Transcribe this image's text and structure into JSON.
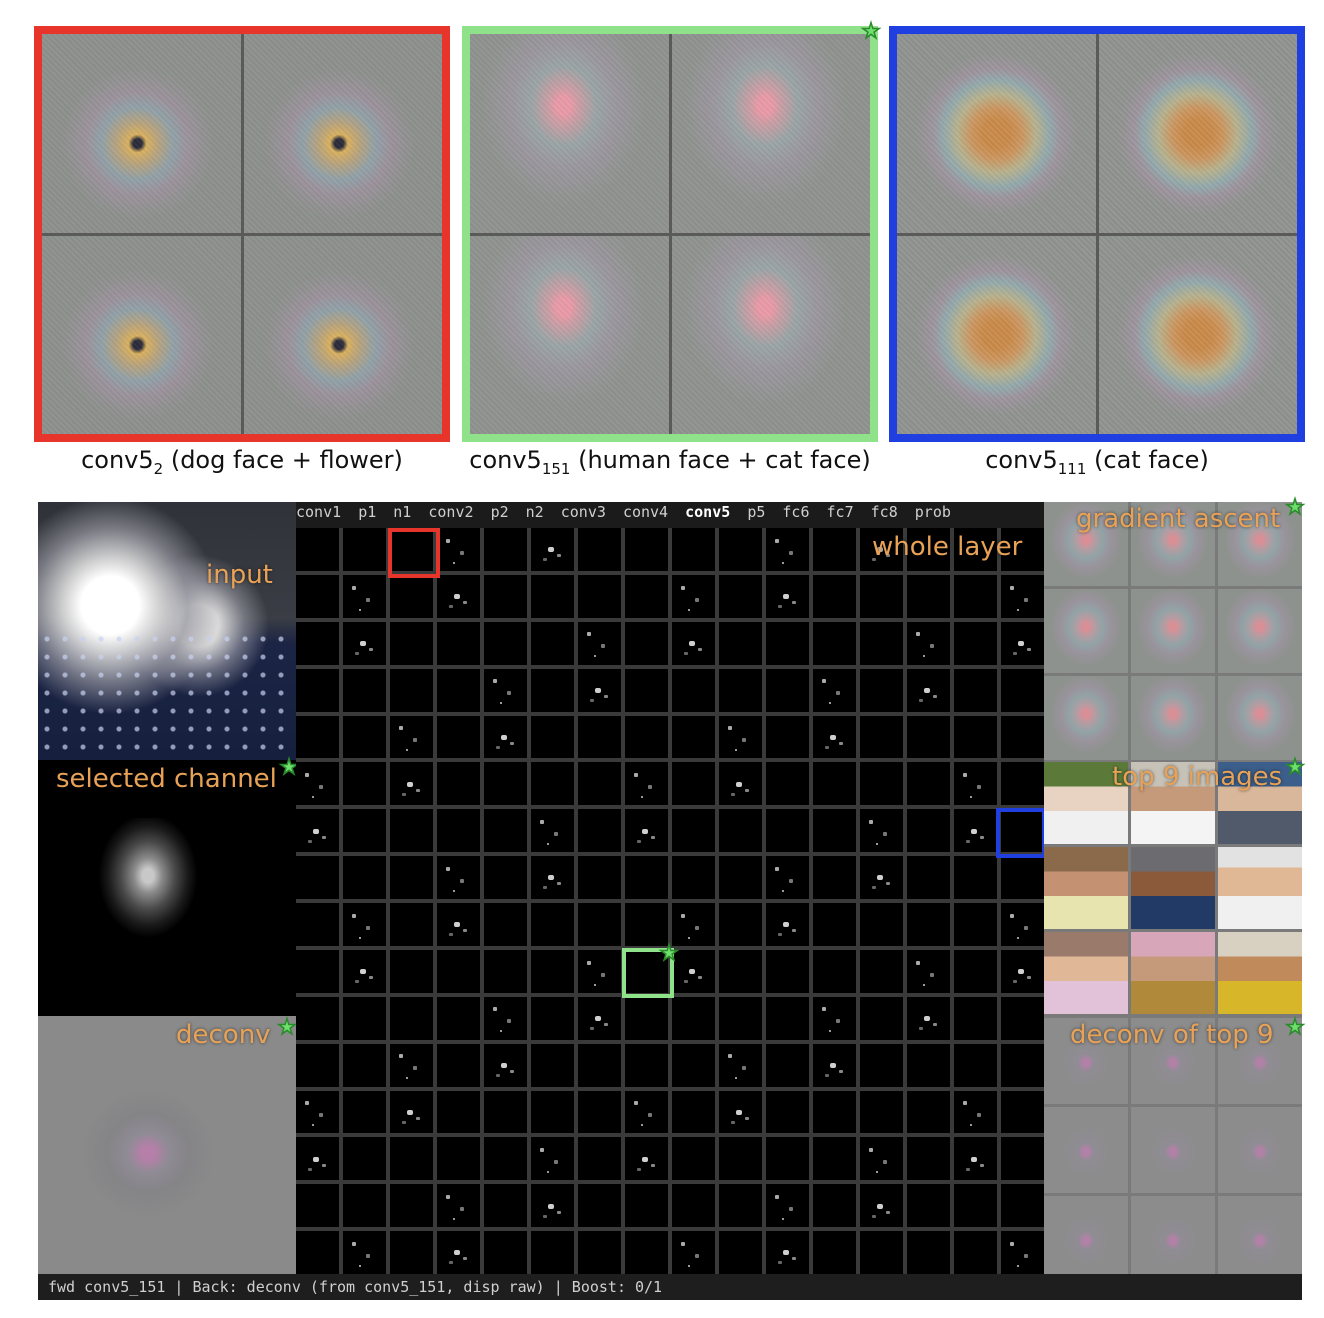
{
  "captions": {
    "panel1": {
      "base": "conv5",
      "sub": "2",
      "rest": " (dog face + flower)"
    },
    "panel2": {
      "base": "conv5",
      "sub": "151",
      "rest": " (human face + cat face)"
    },
    "panel3": {
      "base": "conv5",
      "sub": "111",
      "rest": " (cat face)"
    }
  },
  "colors": {
    "panel1": "#e8352b",
    "panel2": "#8fe28a",
    "panel3": "#1f3fe0",
    "label": "#e8a257"
  },
  "labels": {
    "input": "input",
    "selected_channel": "selected channel",
    "deconv": "deconv",
    "whole_layer": "whole layer",
    "gradient_ascent": "gradient ascent",
    "top9": "top 9 images",
    "deconv_top9": "deconv of top 9"
  },
  "layer_tabs": [
    "conv1",
    "p1",
    "n1",
    "conv2",
    "p2",
    "n2",
    "conv3",
    "conv4",
    "conv5",
    "p5",
    "fc6",
    "fc7",
    "fc8",
    "prob"
  ],
  "active_layer": "conv5",
  "status": "fwd conv5_151 | Back: deconv (from conv5_151, disp raw) | Boost: 0/1",
  "icons": {
    "star": "star-icon"
  }
}
